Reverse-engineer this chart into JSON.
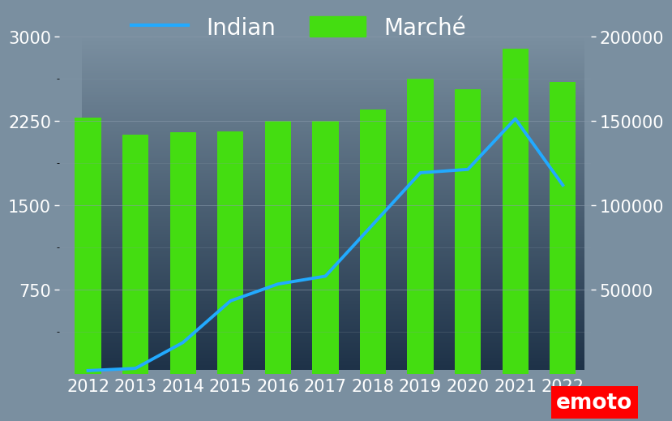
{
  "years": [
    2012,
    2013,
    2014,
    2015,
    2016,
    2017,
    2018,
    2019,
    2020,
    2021,
    2022
  ],
  "marche_values": [
    152000,
    142000,
    143500,
    144000,
    150000,
    150000,
    157000,
    175000,
    169000,
    193000,
    173000
  ],
  "indian_values": [
    30,
    50,
    280,
    650,
    800,
    870,
    1330,
    1790,
    1820,
    2270,
    1680
  ],
  "bar_color": "#44dd11",
  "line_color": "#22aaff",
  "bg_color_top": "#7a8fa0",
  "bg_color_bottom": "#1e3248",
  "left_ylim": [
    0,
    3000
  ],
  "right_ylim": [
    0,
    200000
  ],
  "left_yticks": [
    750,
    1500,
    2250,
    3000
  ],
  "right_yticks": [
    50000,
    100000,
    150000,
    200000
  ],
  "legend_indian": "Indian",
  "legend_marche": "Marché",
  "tick_color": "white",
  "grid_color": "#8899aa",
  "bar_width": 0.55,
  "line_width": 2.8,
  "tick_fontsize": 15,
  "legend_fontsize": 20,
  "emoto_color": "white",
  "emoto_bg": "red",
  "emoto_text": "emoto"
}
